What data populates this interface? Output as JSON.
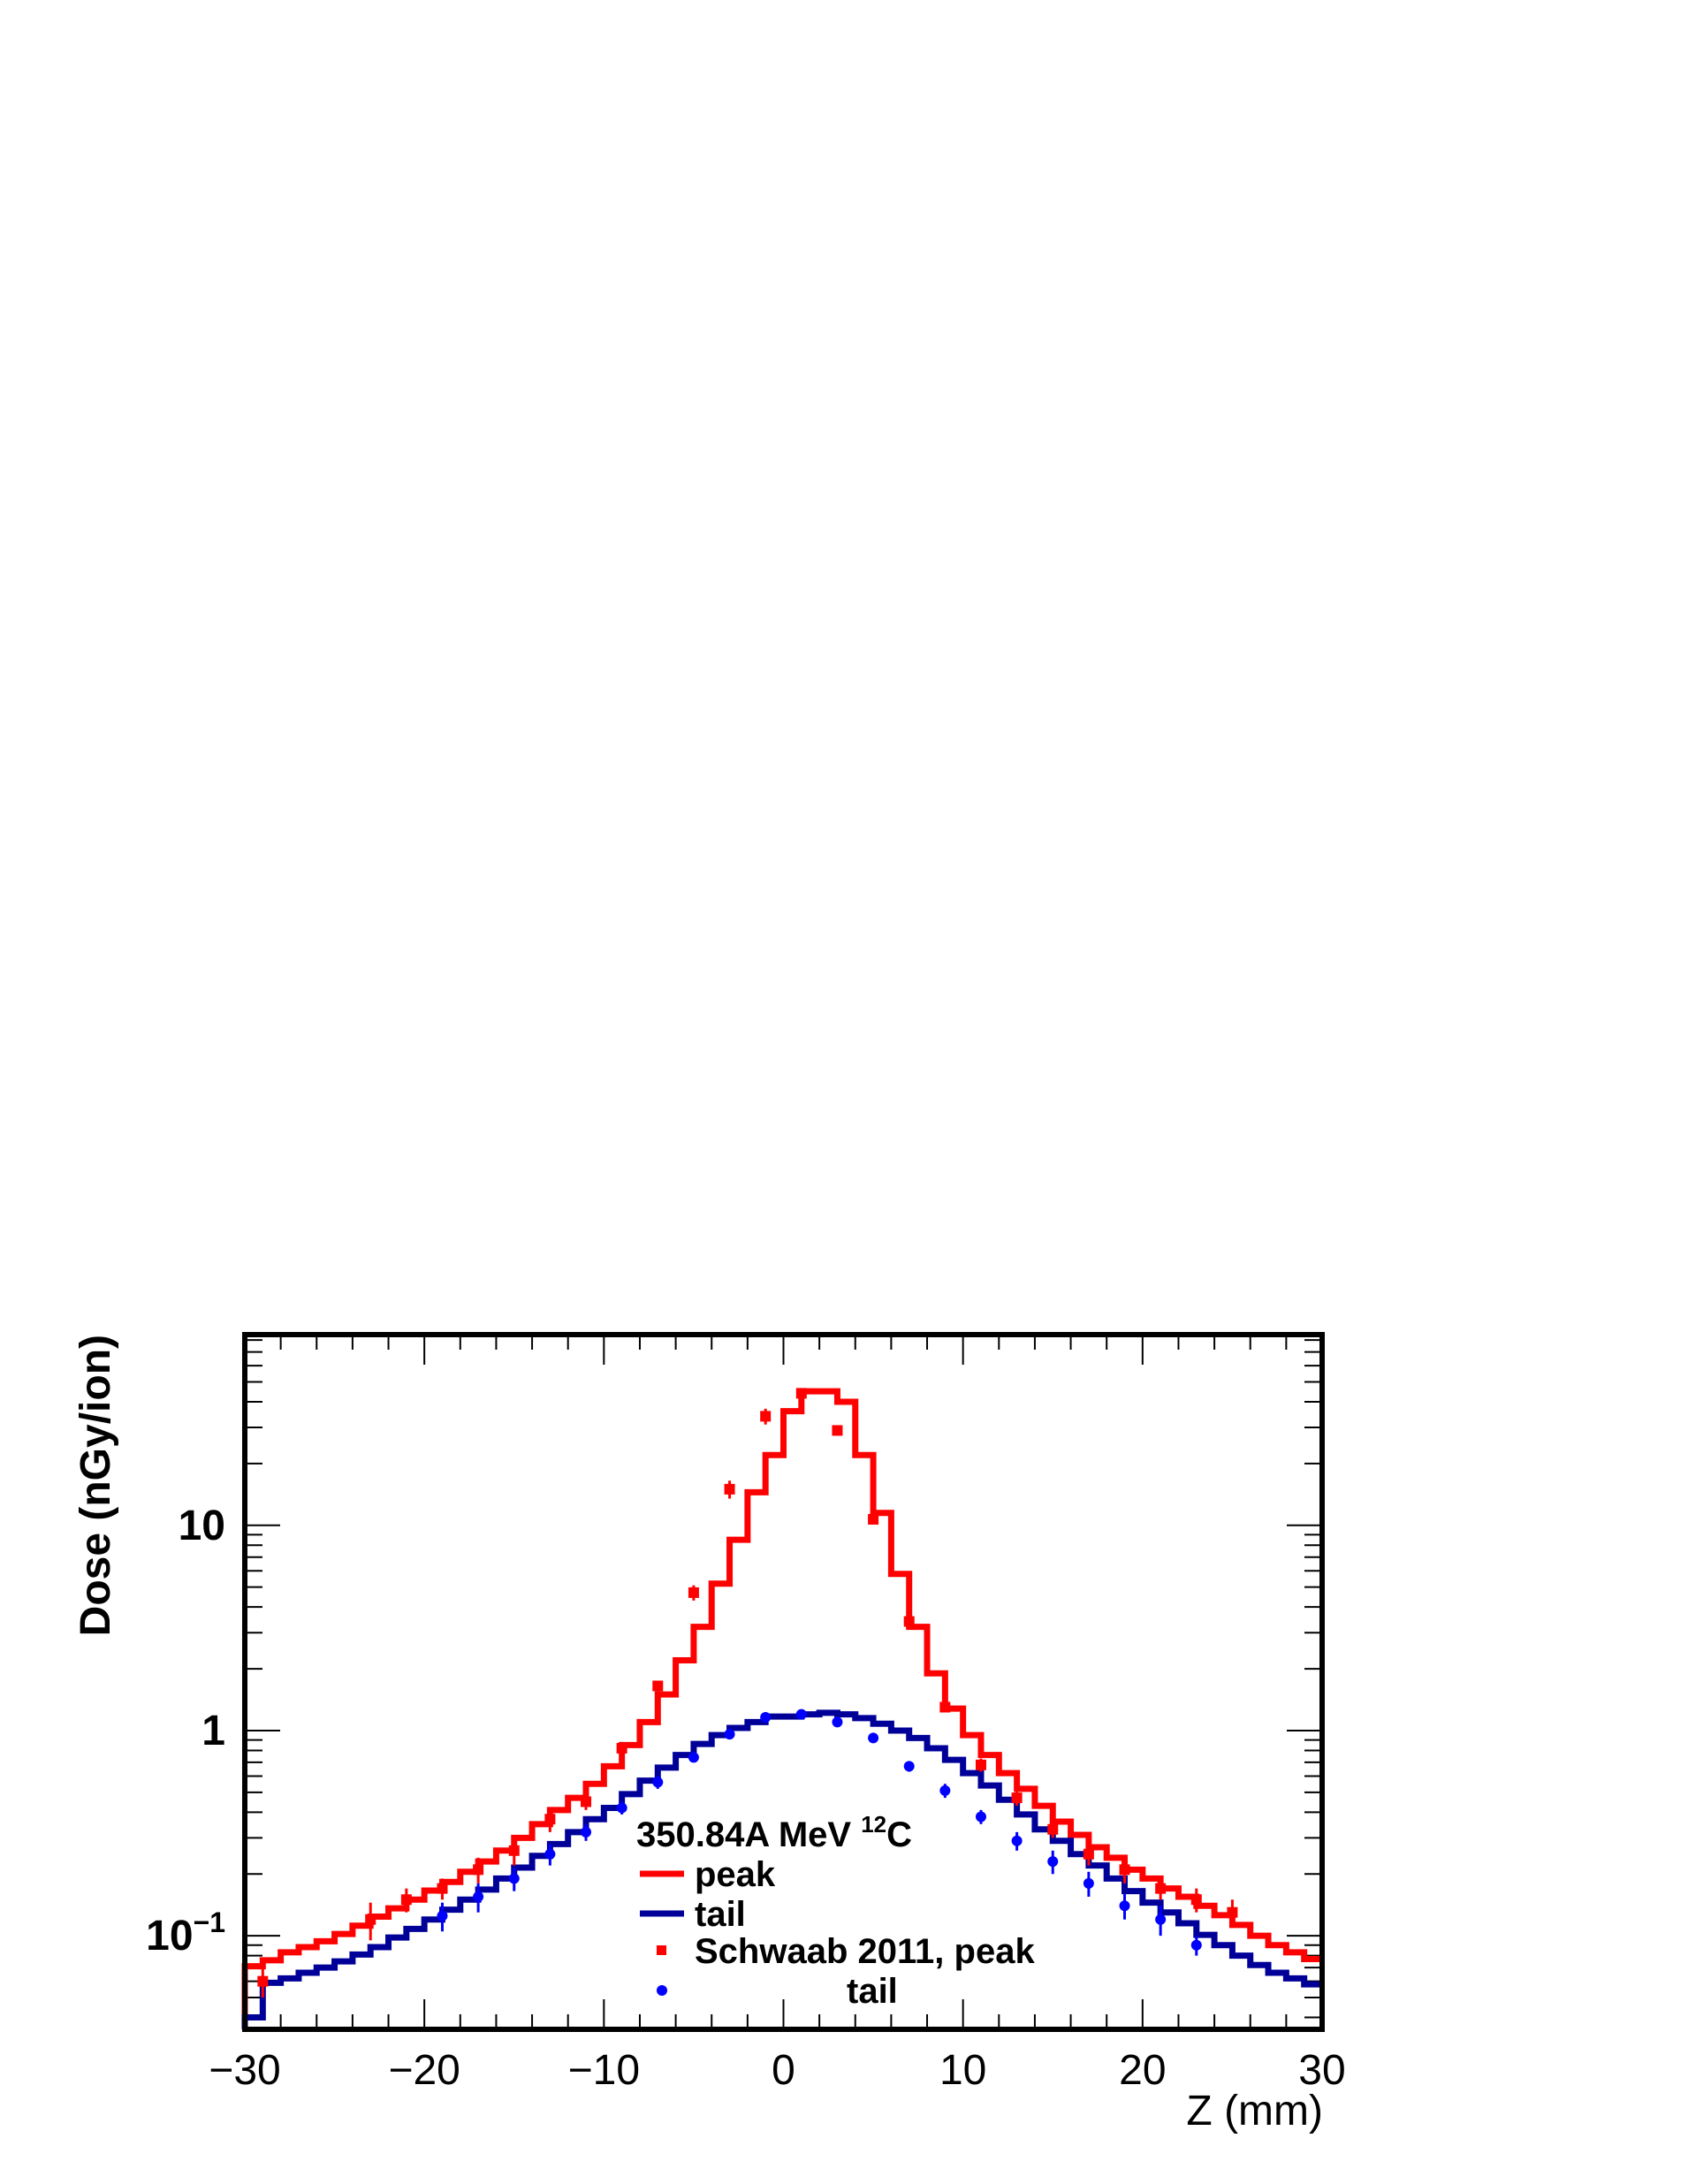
{
  "chart_data": {
    "type": "line",
    "title": "",
    "xlabel": "Z (mm)",
    "ylabel": "Dose (nGy/ion)",
    "xlim": [
      -30,
      30
    ],
    "ylim": [
      0.035,
      85
    ],
    "yscale": "log",
    "grid": false,
    "x_ticks": [
      -30,
      -20,
      -10,
      0,
      10,
      20,
      30
    ],
    "x_tick_labels": [
      "−30",
      "−20",
      "−10",
      "0",
      "10",
      "20",
      "30"
    ],
    "y_ticks": [
      0.1,
      1,
      10
    ],
    "legend": {
      "placement": "bottom-center",
      "header_main": "350.84A MeV ",
      "header_sup": "12",
      "header_tail": "C"
    },
    "colors": {
      "peak": "#ff0000",
      "tail": "#000099",
      "peak_data": "#ff0000",
      "tail_data": "#0000ff"
    },
    "bin_edges": [
      -30,
      -29,
      -28,
      -27,
      -26,
      -25,
      -24,
      -23,
      -22,
      -21,
      -20,
      -19,
      -18,
      -17,
      -16,
      -15,
      -14,
      -13,
      -12,
      -11,
      -10,
      -9,
      -8,
      -7,
      -6,
      -5,
      -4,
      -3,
      -2,
      -1,
      0,
      1,
      2,
      3,
      4,
      5,
      6,
      7,
      8,
      9,
      10,
      11,
      12,
      13,
      14,
      15,
      16,
      17,
      18,
      19,
      20,
      21,
      22,
      23,
      24,
      25,
      26,
      27,
      28,
      29,
      30
    ],
    "series": [
      {
        "name": "peak",
        "kind": "histogram",
        "values": [
          0.071,
          0.076,
          0.083,
          0.088,
          0.094,
          0.102,
          0.112,
          0.124,
          0.136,
          0.15,
          0.166,
          0.183,
          0.205,
          0.23,
          0.26,
          0.3,
          0.35,
          0.41,
          0.47,
          0.55,
          0.67,
          0.85,
          1.1,
          1.5,
          2.2,
          3.2,
          5.2,
          8.5,
          14.5,
          22,
          36,
          45,
          45,
          40,
          22,
          11.5,
          5.8,
          3.2,
          1.9,
          1.28,
          0.95,
          0.76,
          0.62,
          0.52,
          0.43,
          0.36,
          0.31,
          0.27,
          0.24,
          0.21,
          0.19,
          0.17,
          0.155,
          0.14,
          0.126,
          0.113,
          0.1,
          0.09,
          0.083,
          0.077,
          0.071
        ]
      },
      {
        "name": "tail",
        "kind": "histogram",
        "values": [
          0.04,
          0.059,
          0.062,
          0.066,
          0.07,
          0.075,
          0.081,
          0.088,
          0.098,
          0.108,
          0.12,
          0.134,
          0.15,
          0.168,
          0.19,
          0.215,
          0.245,
          0.28,
          0.32,
          0.37,
          0.42,
          0.49,
          0.57,
          0.66,
          0.76,
          0.86,
          0.95,
          1.03,
          1.1,
          1.17,
          1.17,
          1.2,
          1.22,
          1.2,
          1.15,
          1.08,
          1.0,
          0.92,
          0.82,
          0.72,
          0.62,
          0.54,
          0.46,
          0.39,
          0.33,
          0.29,
          0.25,
          0.22,
          0.19,
          0.165,
          0.145,
          0.13,
          0.115,
          0.101,
          0.09,
          0.08,
          0.072,
          0.066,
          0.062,
          0.058,
          0.055
        ]
      },
      {
        "name": "Schwaab 2011, peak",
        "kind": "points",
        "marker": "square",
        "x": [
          -29,
          -23,
          -21,
          -19,
          -17,
          -15,
          -13,
          -11,
          -9,
          -7,
          -5,
          -3,
          -1,
          1,
          3,
          5,
          7,
          9,
          11,
          13,
          15,
          17,
          19,
          21,
          23,
          25
        ],
        "y": [
          0.06,
          0.12,
          0.15,
          0.17,
          0.21,
          0.26,
          0.37,
          0.45,
          0.82,
          1.65,
          4.7,
          15,
          34,
          44,
          29,
          10.7,
          3.4,
          1.3,
          0.68,
          0.47,
          0.33,
          0.25,
          0.21,
          0.17,
          0.15,
          0.13
        ],
        "err_low": [
          0.05,
          0.095,
          0.13,
          0.15,
          0.18,
          0.22,
          0.32,
          0.41,
          0.76,
          1.55,
          4.3,
          13.5,
          31,
          42,
          28,
          10.4,
          3.3,
          1.24,
          0.63,
          0.43,
          0.3,
          0.22,
          0.18,
          0.15,
          0.13,
          0.11
        ],
        "err_high": [
          0.07,
          0.145,
          0.17,
          0.19,
          0.24,
          0.3,
          0.42,
          0.5,
          0.88,
          1.75,
          5.1,
          16.5,
          37,
          46,
          30,
          11,
          3.5,
          1.36,
          0.73,
          0.51,
          0.36,
          0.28,
          0.24,
          0.19,
          0.17,
          0.15
        ]
      },
      {
        "name": "tail",
        "kind": "points",
        "marker": "circle",
        "x": [
          -19,
          -17,
          -15,
          -13,
          -11,
          -9,
          -7,
          -5,
          -3,
          -1,
          1,
          3,
          5,
          7,
          9,
          11,
          13,
          15,
          17,
          19,
          21,
          23
        ],
        "y": [
          0.125,
          0.155,
          0.19,
          0.25,
          0.32,
          0.42,
          0.56,
          0.74,
          0.96,
          1.16,
          1.2,
          1.1,
          0.92,
          0.67,
          0.51,
          0.38,
          0.29,
          0.23,
          0.18,
          0.14,
          0.12,
          0.09
        ],
        "err_low": [
          0.105,
          0.13,
          0.165,
          0.22,
          0.29,
          0.39,
          0.52,
          0.7,
          0.92,
          1.12,
          1.16,
          1.06,
          0.88,
          0.63,
          0.47,
          0.35,
          0.26,
          0.2,
          0.155,
          0.12,
          0.1,
          0.08
        ],
        "err_high": [
          0.145,
          0.18,
          0.215,
          0.28,
          0.35,
          0.45,
          0.6,
          0.78,
          1.0,
          1.2,
          1.24,
          1.14,
          0.96,
          0.71,
          0.55,
          0.41,
          0.32,
          0.26,
          0.205,
          0.16,
          0.14,
          0.1
        ]
      }
    ]
  }
}
